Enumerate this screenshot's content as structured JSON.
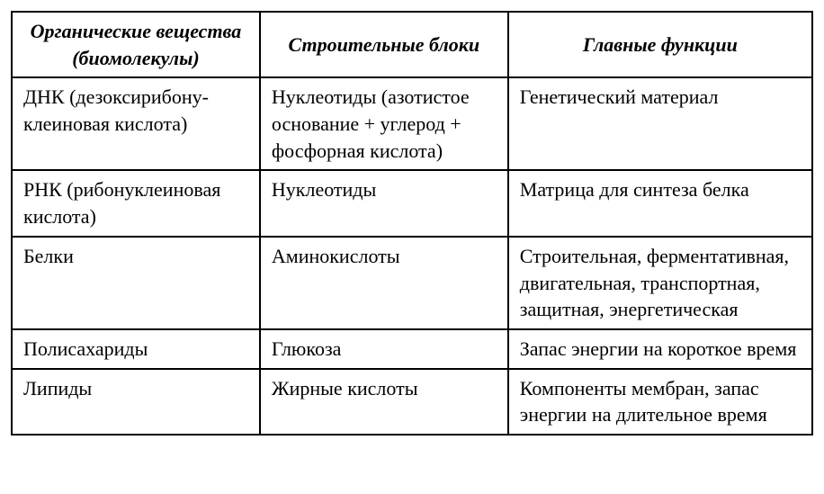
{
  "table": {
    "type": "table",
    "background_color": "#ffffff",
    "border_color": "#000000",
    "border_width": 2,
    "font_family": "Times New Roman",
    "header_fontsize": 22,
    "cell_fontsize": 22,
    "text_color": "#000000",
    "header_style": "bold-italic",
    "columns": [
      {
        "label": "Органические вещества (биомолекулы)",
        "width_pct": 31,
        "align": "center"
      },
      {
        "label": "Строительные блоки",
        "width_pct": 31,
        "align": "center"
      },
      {
        "label": "Главные функции",
        "width_pct": 38,
        "align": "center"
      }
    ],
    "rows": [
      [
        "ДНК (дезоксирибону­клеиновая кислота)",
        "Нуклеотиды (азо­тистое основание + углерод + фосфорная кислота)",
        "Генетический материал"
      ],
      [
        "РНК (рибонуклеино­вая кислота)",
        "Нуклеотиды",
        "Матрица для синтеза белка"
      ],
      [
        "Белки",
        "Аминокислоты",
        "Строительная, фермен­тативная, двигательная, транспортная, защитная, энергетическая"
      ],
      [
        "Полисахариды",
        "Глюкоза",
        "Запас энергии на корот­кое время"
      ],
      [
        "Липиды",
        "Жирные кислоты",
        "Компоненты мембран, за­пас энергии на длительное время"
      ]
    ]
  }
}
